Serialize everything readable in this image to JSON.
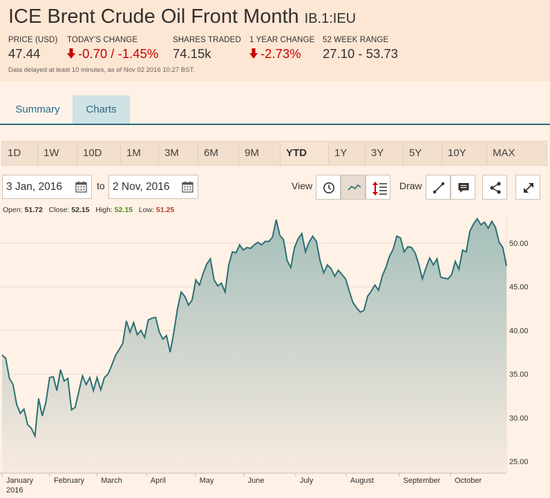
{
  "header": {
    "title": "ICE Brent Crude Oil Front Month",
    "symbol": "IB.1:IEU",
    "stats": [
      {
        "label": "PRICE (USD)",
        "value": "47.44"
      },
      {
        "label": "TODAY'S CHANGE",
        "value": "-0.70 / -1.45%"
      },
      {
        "label": "SHARES TRADED",
        "value": "74.15k"
      },
      {
        "label": "1 YEAR CHANGE",
        "value": "-2.73%"
      },
      {
        "label": "52 WEEK RANGE",
        "value": "27.10 - 53.73"
      }
    ],
    "delay_note": "Data delayed at least 10 minutes, as of Nov 02 2016 10:27 BST."
  },
  "tabs": {
    "summary": "Summary",
    "charts": "Charts"
  },
  "periods": [
    "1D",
    "1W",
    "10D",
    "1M",
    "3M",
    "6M",
    "9M",
    "YTD",
    "1Y",
    "3Y",
    "5Y",
    "10Y",
    "MAX"
  ],
  "active_period": "YTD",
  "controls": {
    "from_date": "3 Jan, 2016",
    "to_label": "to",
    "to_date": "2 Nov, 2016",
    "view_label": "View",
    "draw_label": "Draw"
  },
  "icons": [
    "calendar-icon",
    "clock-icon",
    "mountain-chart-icon",
    "indicators-icon",
    "line-draw-icon",
    "annotation-icon",
    "share-icon",
    "expand-icon"
  ],
  "colors": {
    "line": "#2c6f72",
    "area_top": "#a4bfba",
    "area_bottom": "#f8ebe0",
    "negative": "#cc0000"
  },
  "ohlc": {
    "open_label": "Open:",
    "open": "51.72",
    "close_label": "Close:",
    "close": "52.15",
    "high_label": "High:",
    "high": "52.15",
    "low_label": "Low:",
    "low": "51.25"
  },
  "chart_data": {
    "type": "area",
    "x_labels": [
      "January",
      "February",
      "March",
      "April",
      "May",
      "June",
      "July",
      "August",
      "September",
      "October"
    ],
    "x_sublabel": "2016",
    "y_ticks": [
      "25.00",
      "30.00",
      "35.00",
      "40.00",
      "45.00",
      "50.00"
    ],
    "ylim": [
      24.8,
      53.5
    ],
    "grid": "horizontal",
    "series": [
      {
        "values": [
          37.2,
          36.8,
          34.5,
          33.8,
          31.5,
          30.5,
          31.0,
          29.2,
          28.8,
          27.9,
          32.2,
          30.2,
          31.8,
          34.6,
          34.7,
          33.1,
          35.5,
          34.2,
          34.5,
          30.9,
          31.2,
          33.0,
          34.8,
          33.8,
          34.6,
          33.1,
          34.6,
          33.2,
          34.6,
          35.0,
          36.0,
          37.1,
          37.8,
          38.5,
          41.1,
          39.8,
          40.9,
          39.5,
          40.0,
          39.2,
          41.2,
          41.4,
          41.5,
          39.8,
          39.0,
          39.4,
          37.5,
          39.8,
          42.5,
          44.4,
          43.9,
          42.9,
          43.5,
          45.8,
          45.2,
          46.5,
          47.6,
          48.2,
          45.8,
          45.1,
          45.4,
          44.4,
          47.5,
          49.0,
          48.9,
          49.8,
          49.2,
          49.5,
          49.4,
          49.8,
          50.1,
          49.8,
          50.2,
          50.2,
          50.7,
          52.7,
          50.9,
          50.4,
          48.0,
          47.2,
          49.5,
          50.5,
          51.1,
          49.0,
          50.1,
          50.8,
          50.2,
          48.0,
          46.6,
          47.5,
          47.1,
          46.2,
          46.9,
          46.4,
          45.9,
          44.5,
          43.2,
          42.6,
          42.1,
          42.3,
          43.9,
          44.5,
          45.2,
          44.6,
          46.2,
          47.2,
          48.5,
          49.3,
          50.8,
          50.6,
          49.0,
          49.6,
          49.5,
          48.9,
          47.6,
          45.9,
          47.2,
          48.3,
          47.5,
          48.2,
          46.1,
          46.0,
          45.9,
          46.4,
          47.9,
          47.0,
          49.2,
          49.0,
          51.4,
          52.2,
          52.8,
          52.1,
          52.4,
          51.7,
          52.5,
          51.8,
          50.1,
          49.5,
          47.4
        ]
      }
    ]
  }
}
